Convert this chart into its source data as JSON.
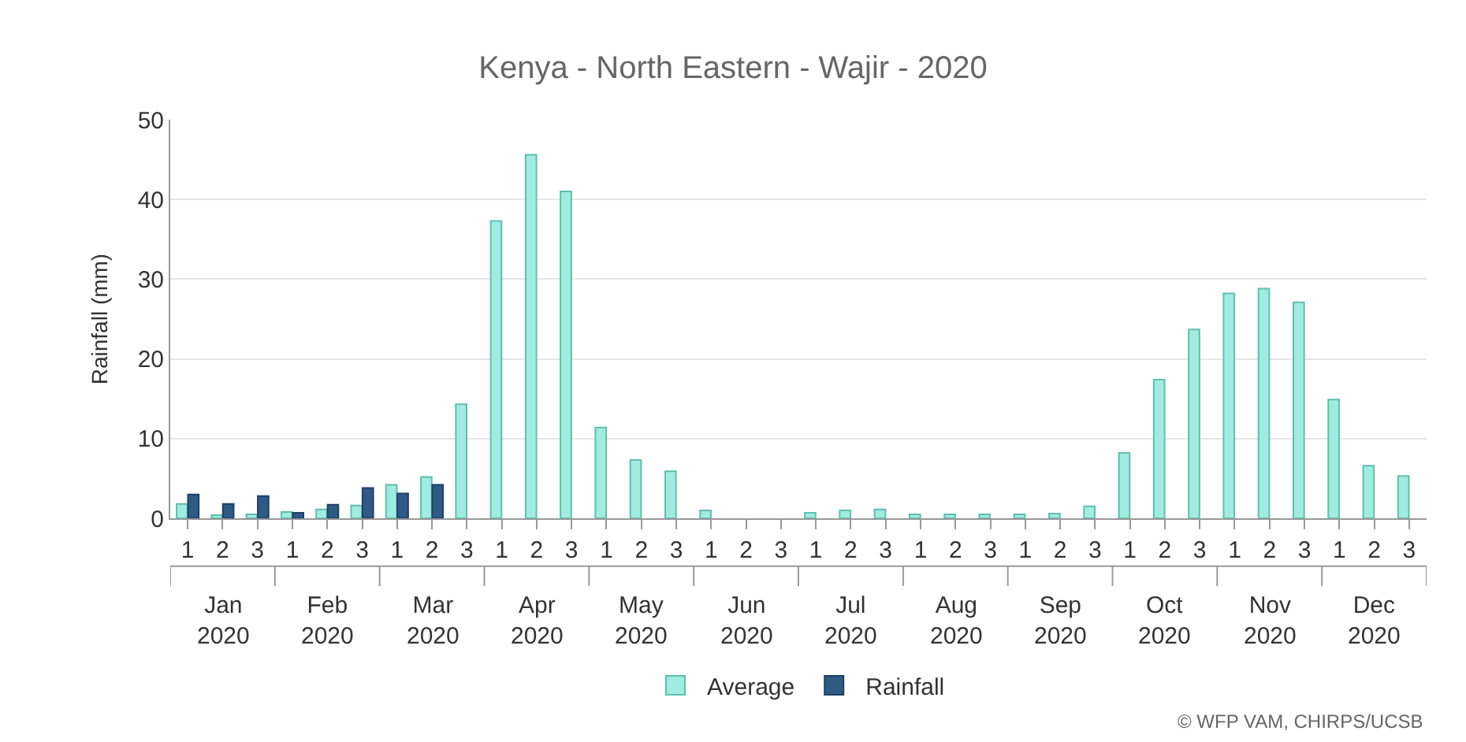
{
  "chart_data": {
    "type": "bar",
    "title": "Kenya - North Eastern - Wajir - 2020",
    "ylabel": "Rainfall (mm)",
    "categories": [
      "1",
      "2",
      "3",
      "1",
      "2",
      "3",
      "1",
      "2",
      "3",
      "1",
      "2",
      "3",
      "1",
      "2",
      "3",
      "1",
      "2",
      "3",
      "1",
      "2",
      "3",
      "1",
      "2",
      "3",
      "1",
      "2",
      "3",
      "1",
      "2",
      "3",
      "1",
      "2",
      "3",
      "1",
      "2",
      "3"
    ],
    "series": [
      {
        "name": "Average",
        "color": "#a0ece0",
        "values": [
          1.8,
          0.4,
          0.5,
          0.8,
          1.1,
          1.6,
          4.2,
          5.2,
          14.3,
          37.3,
          45.6,
          41.0,
          11.4,
          7.3,
          5.9,
          1.0,
          0,
          0,
          0.7,
          1.0,
          1.1,
          0.5,
          0.5,
          0.5,
          0.5,
          0.6,
          1.5,
          8.2,
          17.4,
          23.7,
          28.2,
          28.8,
          27.1,
          14.9,
          6.6,
          5.3
        ]
      },
      {
        "name": "Rainfall",
        "color": "#2f5a86",
        "values": [
          3.0,
          1.8,
          2.8,
          0.7,
          1.7,
          3.8,
          3.1,
          4.2,
          null,
          null,
          null,
          null,
          null,
          null,
          null,
          null,
          null,
          null,
          null,
          null,
          null,
          null,
          null,
          null,
          null,
          null,
          null,
          null,
          null,
          null,
          null,
          null,
          null,
          null,
          null,
          null
        ]
      }
    ],
    "annotations": [
      "Jan\n2020",
      "Feb\n2020",
      "Mar\n2020",
      "Apr\n2020",
      "May\n2020",
      "Jun\n2020",
      "Jul\n2020",
      "Aug\n2020",
      "Sep\n2020",
      "Oct\n2020",
      "Nov\n2020",
      "Dec\n2020",
      "© WFP VAM, CHIRPS/UCSB"
    ],
    "ylim": [
      0,
      50
    ],
    "yticks": [
      0,
      10,
      20,
      30,
      40,
      50
    ],
    "grid": "y",
    "legend": "bottom"
  }
}
